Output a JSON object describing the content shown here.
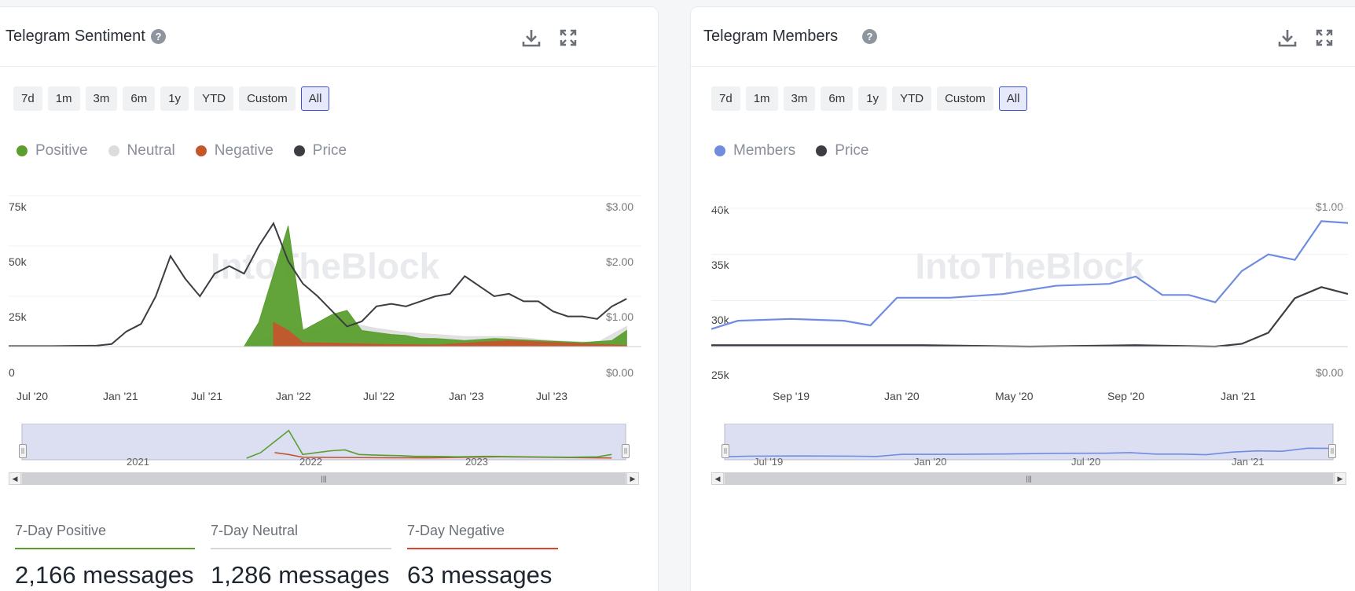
{
  "sentiment_panel": {
    "title": "Telegram Sentiment",
    "ranges": [
      "7d",
      "1m",
      "3m",
      "6m",
      "1y",
      "YTD",
      "Custom",
      "All"
    ],
    "active_range": "All",
    "legend": [
      {
        "label": "Positive",
        "color": "#5a9e2f"
      },
      {
        "label": "Neutral",
        "color": "#dcdcdc"
      },
      {
        "label": "Negative",
        "color": "#c4562e"
      },
      {
        "label": "Price",
        "color": "#3b3d42"
      }
    ],
    "y_left_ticks": [
      "75k",
      "50k",
      "25k",
      "0"
    ],
    "y_right_ticks": [
      "$3.00",
      "$2.00",
      "$1.00",
      "$0.00"
    ],
    "x_ticks": [
      "Jul '20",
      "Jan '21",
      "Jul '21",
      "Jan '22",
      "Jul '22",
      "Jan '23",
      "Jul '23"
    ],
    "navigator_labels": [
      "2021",
      "2022",
      "2023"
    ],
    "stats": [
      {
        "label": "7-Day Positive",
        "value": "2,166 messages",
        "color": "#5a9e2f"
      },
      {
        "label": "7-Day Neutral",
        "value": "1,286 messages",
        "color": "#d6d6d6"
      },
      {
        "label": "7-Day Negative",
        "value": "63 messages",
        "color": "#d9432f"
      }
    ],
    "watermark": "IntoTheBlock"
  },
  "members_panel": {
    "title": "Telegram Members",
    "ranges": [
      "7d",
      "1m",
      "3m",
      "6m",
      "1y",
      "YTD",
      "Custom",
      "All"
    ],
    "active_range": "All",
    "legend": [
      {
        "label": "Members",
        "color": "#6f8ce0"
      },
      {
        "label": "Price",
        "color": "#3b3d42"
      }
    ],
    "y_left_ticks": [
      "40k",
      "35k",
      "30k",
      "25k"
    ],
    "y_right_ticks": [
      "$1.00",
      "$0.00"
    ],
    "x_ticks": [
      "Sep '19",
      "Jan '20",
      "May '20",
      "Sep '20",
      "Jan '21"
    ],
    "navigator_labels": [
      "Jul '19",
      "Jan '20",
      "Jul '20",
      "Jan '21"
    ],
    "watermark": "IntoTheBlock"
  },
  "chart_data": [
    {
      "type": "area",
      "title": "Telegram Sentiment",
      "x_range": [
        "2020-06",
        "2024-01"
      ],
      "ylim": [
        0,
        75000
      ],
      "y2lim": [
        0,
        3
      ],
      "series": [
        {
          "name": "Positive",
          "x": [
            "2021-10",
            "2021-11",
            "2021-12",
            "2022-01",
            "2022-02",
            "2022-03",
            "2022-04",
            "2022-05",
            "2022-06",
            "2022-07",
            "2022-08",
            "2022-09",
            "2022-10",
            "2022-11",
            "2022-12",
            "2023-01",
            "2023-03",
            "2023-06",
            "2023-09",
            "2023-11",
            "2023-12"
          ],
          "values": [
            0,
            12000,
            36000,
            60000,
            8000,
            12000,
            16000,
            18000,
            8000,
            7000,
            6000,
            5500,
            4000,
            4000,
            3500,
            3000,
            4000,
            3000,
            2000,
            3000,
            8000
          ]
        },
        {
          "name": "Neutral",
          "x": [
            "2021-10",
            "2021-12",
            "2022-01",
            "2022-03",
            "2022-05",
            "2022-07",
            "2022-09",
            "2022-11",
            "2023-01",
            "2023-04",
            "2023-07",
            "2023-10",
            "2023-12"
          ],
          "values": [
            0,
            6000,
            10000,
            8000,
            12000,
            9000,
            7000,
            6000,
            5000,
            5000,
            3000,
            2000,
            10000
          ]
        },
        {
          "name": "Negative",
          "x": [
            "2021-12",
            "2022-01",
            "2022-02",
            "2022-05",
            "2022-08",
            "2022-11",
            "2023-04",
            "2023-12"
          ],
          "values": [
            12000,
            8000,
            2000,
            1500,
            1000,
            800,
            3000,
            500
          ]
        },
        {
          "name": "Price",
          "axis": "right",
          "x": [
            "2020-06",
            "2020-09",
            "2020-12",
            "2021-01",
            "2021-02",
            "2021-03",
            "2021-04",
            "2021-05",
            "2021-06",
            "2021-07",
            "2021-08",
            "2021-09",
            "2021-10",
            "2021-11",
            "2021-12",
            "2022-01",
            "2022-02",
            "2022-03",
            "2022-04",
            "2022-05",
            "2022-06",
            "2022-07",
            "2022-08",
            "2022-09",
            "2022-10",
            "2022-11",
            "2022-12",
            "2023-01",
            "2023-02",
            "2023-03",
            "2023-04",
            "2023-05",
            "2023-06",
            "2023-07",
            "2023-08",
            "2023-09",
            "2023-10",
            "2023-11",
            "2023-12"
          ],
          "values": [
            0.01,
            0.01,
            0.02,
            0.05,
            0.3,
            0.45,
            1.0,
            1.8,
            1.35,
            1.0,
            1.45,
            1.6,
            1.45,
            2.0,
            2.45,
            1.7,
            1.25,
            1.0,
            0.7,
            0.4,
            0.5,
            0.8,
            0.85,
            0.8,
            0.9,
            1.0,
            1.05,
            1.4,
            1.2,
            1.0,
            1.05,
            0.9,
            0.9,
            0.7,
            0.6,
            0.6,
            0.55,
            0.8,
            0.95
          ]
        }
      ]
    },
    {
      "type": "line",
      "title": "Telegram Members",
      "x_range": [
        "2019-06",
        "2021-06"
      ],
      "ylim": [
        25000,
        40000
      ],
      "y2lim": [
        0,
        1
      ],
      "series": [
        {
          "name": "Members",
          "x": [
            "2019-06",
            "2019-07",
            "2019-09",
            "2019-11",
            "2019-12",
            "2020-01",
            "2020-03",
            "2020-05",
            "2020-07",
            "2020-09",
            "2020-10",
            "2020-11",
            "2020-12",
            "2021-01",
            "2021-02",
            "2021-03",
            "2021-04",
            "2021-05",
            "2021-06"
          ],
          "values": [
            26900,
            27800,
            28000,
            27800,
            27300,
            30300,
            30300,
            30700,
            31600,
            31800,
            32600,
            30600,
            30600,
            29800,
            33200,
            35000,
            34400,
            38600,
            38400
          ]
        },
        {
          "name": "Price",
          "axis": "right",
          "x": [
            "2019-06",
            "2019-10",
            "2019-12",
            "2020-02",
            "2020-06",
            "2020-10",
            "2021-01",
            "2021-02",
            "2021-03",
            "2021-04",
            "2021-05",
            "2021-06"
          ],
          "values": [
            0.01,
            0.01,
            0.01,
            0.01,
            0.0,
            0.01,
            0.0,
            0.02,
            0.1,
            0.35,
            0.43,
            0.38
          ]
        }
      ]
    }
  ]
}
